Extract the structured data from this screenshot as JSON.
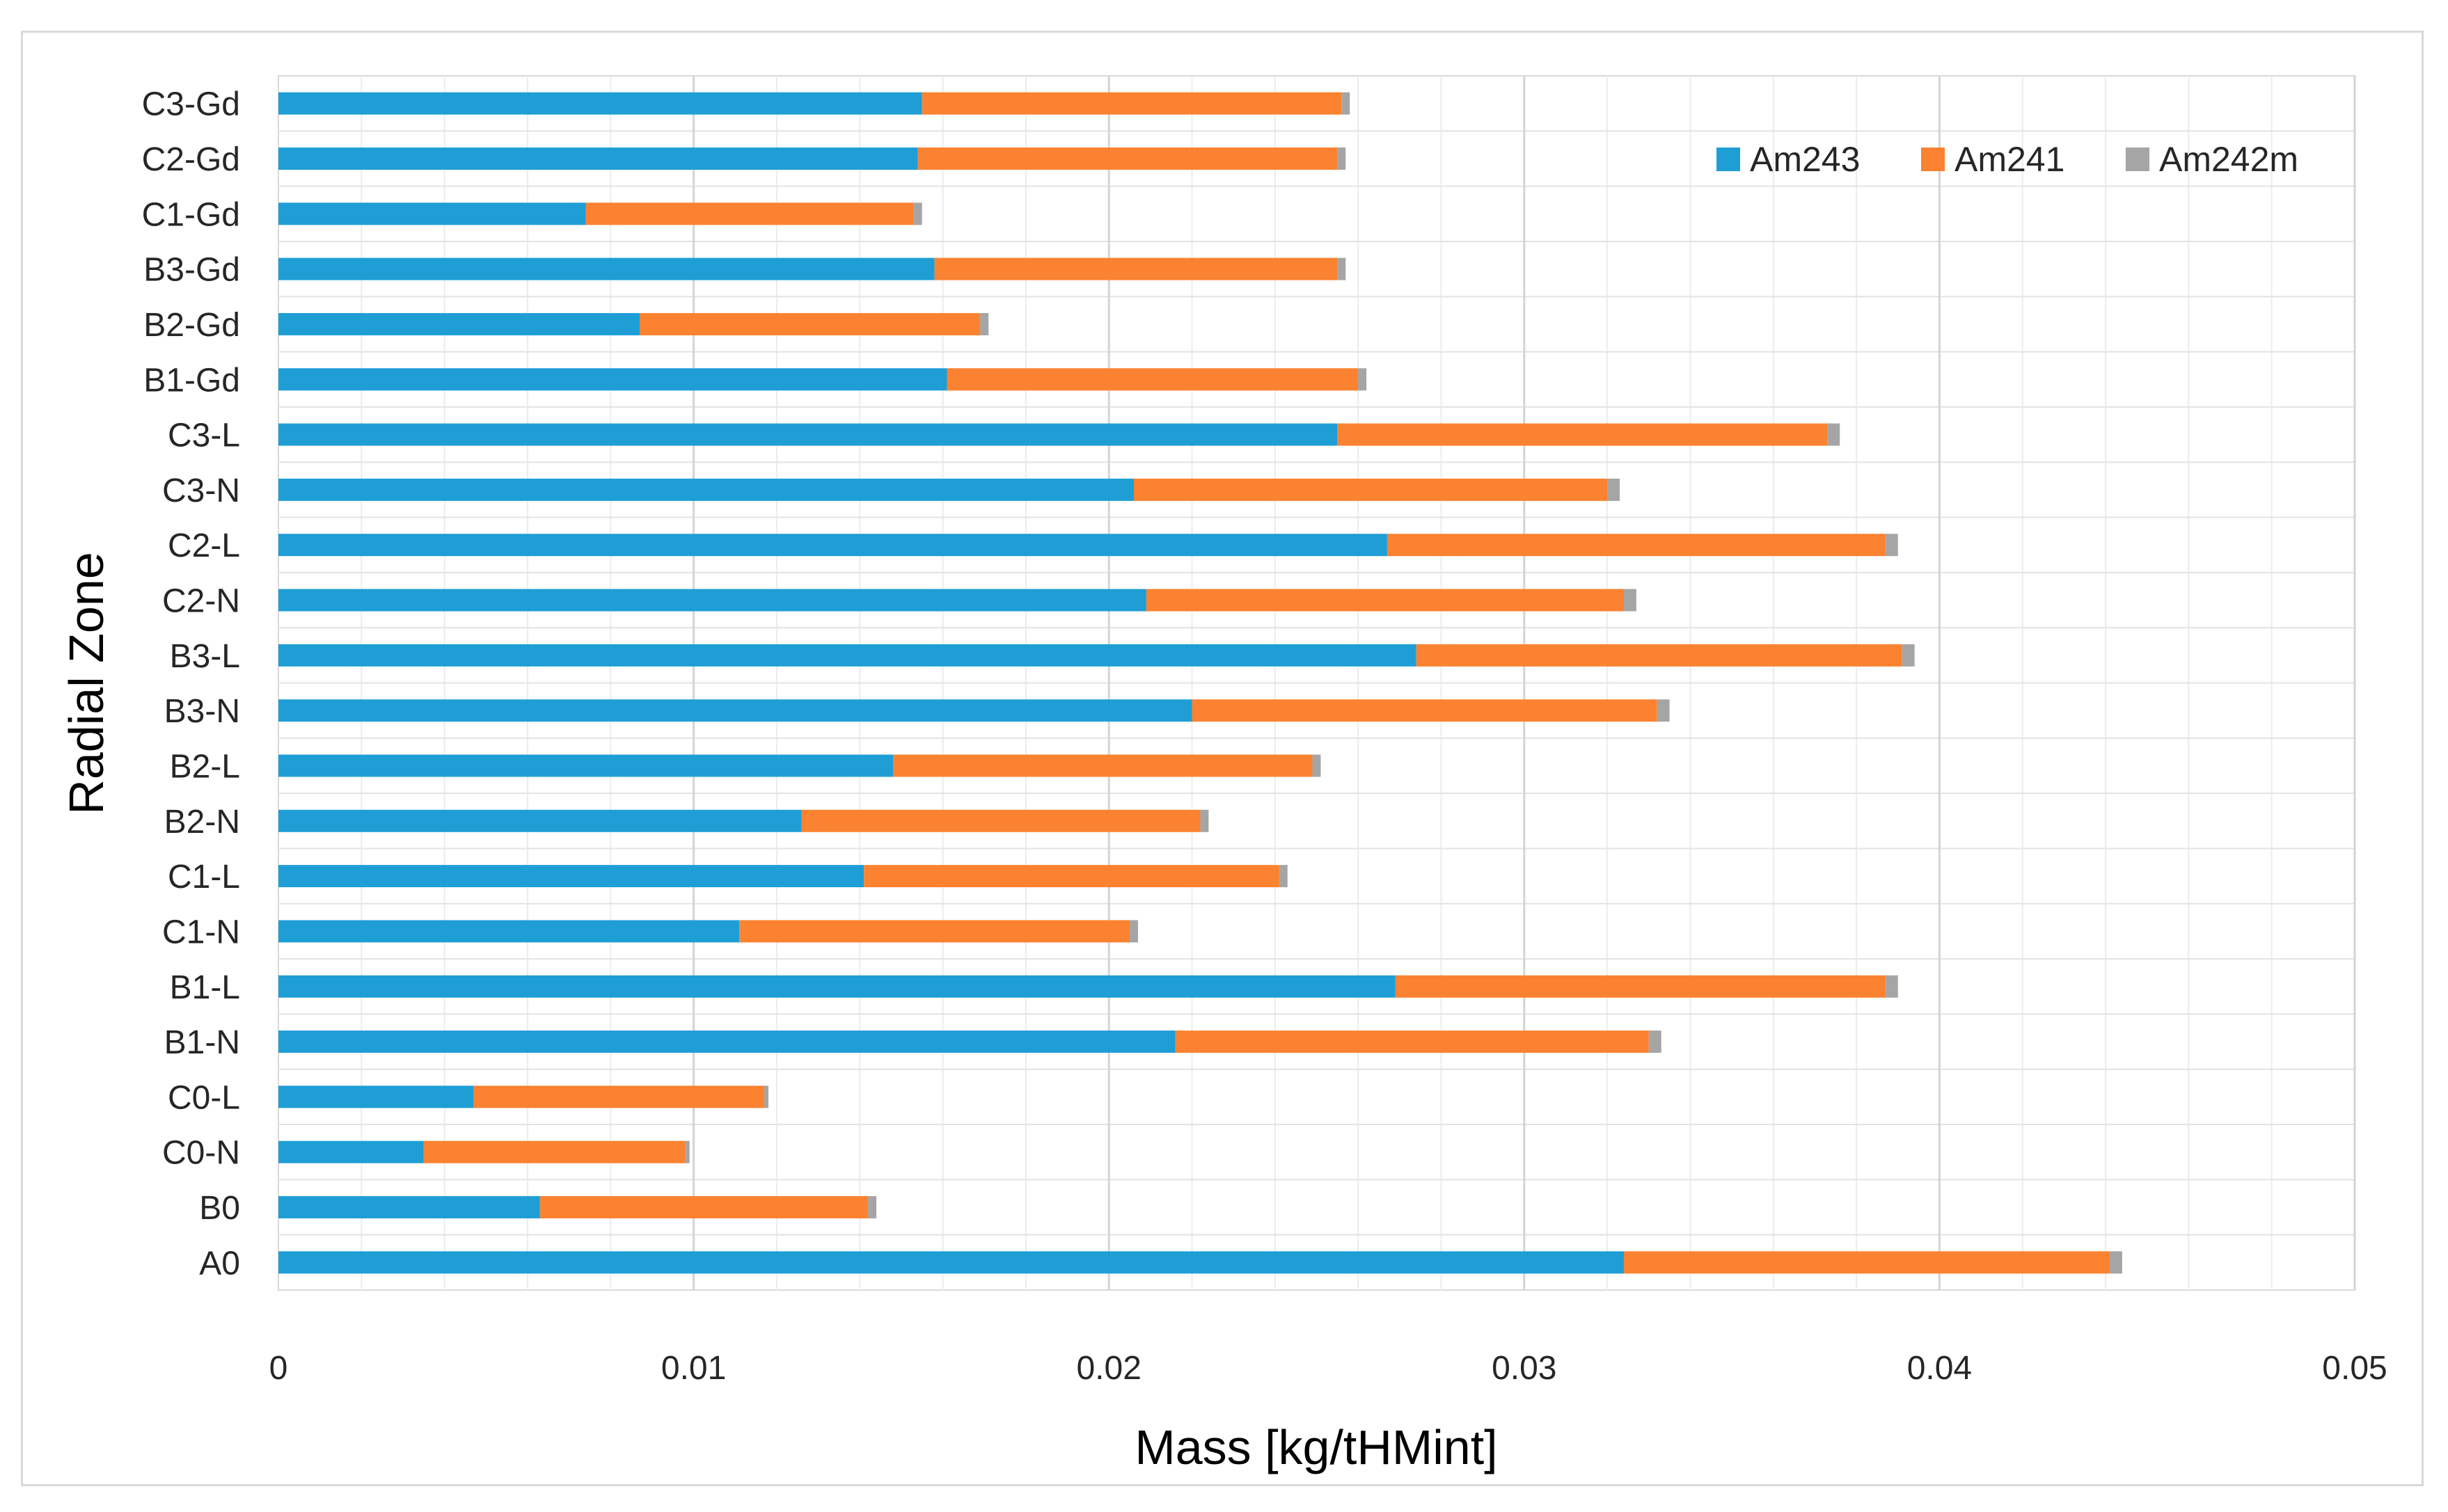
{
  "chart_data": {
    "type": "bar",
    "orientation": "horizontal",
    "stacked": true,
    "title": "",
    "xlabel": "Mass [kg/tHMint]",
    "ylabel": "Radial Zone",
    "xlim": [
      0,
      0.05
    ],
    "x_ticks": [
      0,
      0.01,
      0.02,
      0.03,
      0.04,
      0.05
    ],
    "x_tick_labels": [
      "0",
      "0.01",
      "0.02",
      "0.03",
      "0.04",
      "0.05"
    ],
    "grid": true,
    "legend_position": "top-right",
    "categories": [
      "C3-Gd",
      "C2-Gd",
      "C1-Gd",
      "B3-Gd",
      "B2-Gd",
      "B1-Gd",
      "C3-L",
      "C3-N",
      "C2-L",
      "C2-N",
      "B3-L",
      "B3-N",
      "B2-L",
      "B2-N",
      "C1-L",
      "C1-N",
      "B1-L",
      "B1-N",
      "C0-L",
      "C0-N",
      "B0",
      "A0"
    ],
    "series": [
      {
        "name": "Am243",
        "color": "#1f9ed6",
        "values": [
          0.0155,
          0.0154,
          0.0074,
          0.0158,
          0.0087,
          0.0161,
          0.0255,
          0.0206,
          0.0267,
          0.0209,
          0.0274,
          0.022,
          0.0148,
          0.0126,
          0.0141,
          0.0111,
          0.0269,
          0.0216,
          0.0047,
          0.0035,
          0.0063,
          0.0324
        ]
      },
      {
        "name": "Am241",
        "color": "#fb8230",
        "values": [
          0.0101,
          0.0101,
          0.0079,
          0.0097,
          0.0082,
          0.0099,
          0.0118,
          0.0114,
          0.012,
          0.0115,
          0.0117,
          0.0112,
          0.0101,
          0.0096,
          0.01,
          0.0094,
          0.0118,
          0.0114,
          0.007,
          0.0063,
          0.0079,
          0.0117
        ]
      },
      {
        "name": "Am242m",
        "color": "#a5a5a5",
        "values": [
          0.0002,
          0.0002,
          0.0002,
          0.0002,
          0.0002,
          0.0002,
          0.0003,
          0.0003,
          0.0003,
          0.0003,
          0.0003,
          0.0003,
          0.0002,
          0.0002,
          0.0002,
          0.0002,
          0.0003,
          0.0003,
          0.0001,
          0.0001,
          0.0002,
          0.0003
        ]
      }
    ]
  }
}
